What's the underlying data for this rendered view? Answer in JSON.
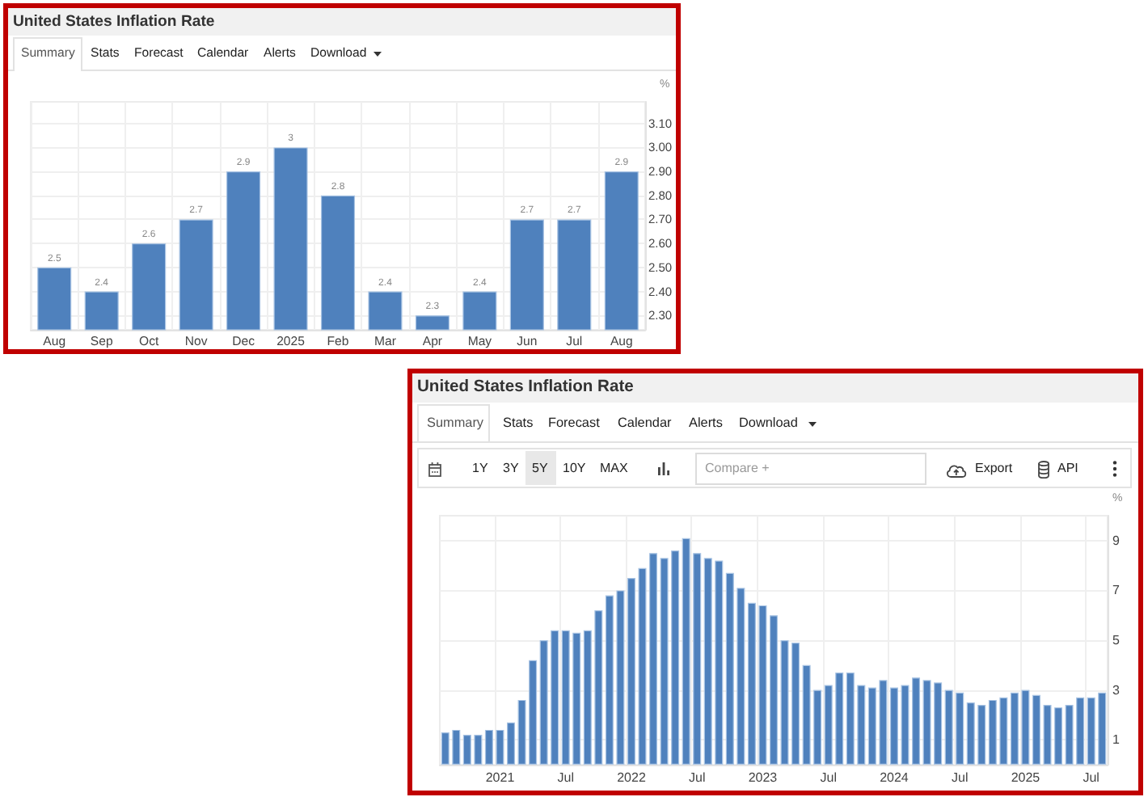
{
  "chart_data": [
    {
      "type": "bar",
      "title": "United States Inflation Rate",
      "annotations": [
        "Summary",
        "Stats",
        "Forecast",
        "Calendar",
        "Alerts",
        "Download"
      ],
      "ylabel": "%",
      "categories": [
        "Aug",
        "Sep",
        "Oct",
        "Nov",
        "Dec",
        "2025",
        "Feb",
        "Mar",
        "Apr",
        "May",
        "Jun",
        "Jul",
        "Aug"
      ],
      "values": [
        2.5,
        2.4,
        2.6,
        2.7,
        2.9,
        3,
        2.8,
        2.4,
        2.3,
        2.4,
        2.7,
        2.7,
        2.9
      ],
      "color": "#4f81bd",
      "ylim": [
        2.24,
        3.19
      ],
      "yticks": [
        {
          "value": 2.3,
          "label": "2.30"
        },
        {
          "value": 2.4,
          "label": "2.40"
        },
        {
          "value": 2.5,
          "label": "2.50"
        },
        {
          "value": 2.6,
          "label": "2.60"
        },
        {
          "value": 2.7,
          "label": "2.70"
        },
        {
          "value": 2.8,
          "label": "2.80"
        },
        {
          "value": 2.9,
          "label": "2.90"
        },
        {
          "value": 3.0,
          "label": "3.00"
        },
        {
          "value": 3.1,
          "label": "3.10"
        }
      ],
      "data_labels": true,
      "grid": true
    },
    {
      "type": "bar",
      "title": "United States Inflation Rate",
      "annotations": [
        "Summary",
        "Stats",
        "Forecast",
        "Calendar",
        "Alerts",
        "Download",
        "1Y",
        "3Y",
        "5Y",
        "10Y",
        "MAX",
        "Compare +",
        "Export",
        "API"
      ],
      "ylabel": "%",
      "categories": [
        null,
        null,
        null,
        null,
        null,
        "2021",
        null,
        null,
        null,
        null,
        null,
        "Jul",
        null,
        null,
        null,
        null,
        null,
        "2022",
        null,
        null,
        null,
        null,
        null,
        "Jul",
        null,
        null,
        null,
        null,
        null,
        "2023",
        null,
        null,
        null,
        null,
        null,
        "Jul",
        null,
        null,
        null,
        null,
        null,
        "2024",
        null,
        null,
        null,
        null,
        null,
        "Jul",
        null,
        null,
        null,
        null,
        null,
        "2025",
        null,
        null,
        null,
        null,
        null,
        "Jul",
        null
      ],
      "values": [
        1.3,
        1.4,
        1.2,
        1.2,
        1.4,
        1.4,
        1.7,
        2.6,
        4.2,
        5.0,
        5.4,
        5.4,
        5.3,
        5.4,
        6.2,
        6.8,
        7.0,
        7.5,
        7.9,
        8.5,
        8.3,
        8.6,
        9.1,
        8.5,
        8.3,
        8.2,
        7.7,
        7.1,
        6.5,
        6.4,
        6.0,
        5.0,
        4.9,
        4.0,
        3.0,
        3.2,
        3.7,
        3.7,
        3.2,
        3.1,
        3.4,
        3.1,
        3.2,
        3.5,
        3.4,
        3.3,
        3.0,
        2.9,
        2.5,
        2.4,
        2.6,
        2.7,
        2.9,
        3.0,
        2.8,
        2.4,
        2.3,
        2.4,
        2.7,
        2.7,
        2.9
      ],
      "color": "#4f81bd",
      "ylim": [
        0,
        10
      ],
      "yticks": [
        1,
        3,
        5,
        7,
        9
      ],
      "grid": true
    }
  ]
}
